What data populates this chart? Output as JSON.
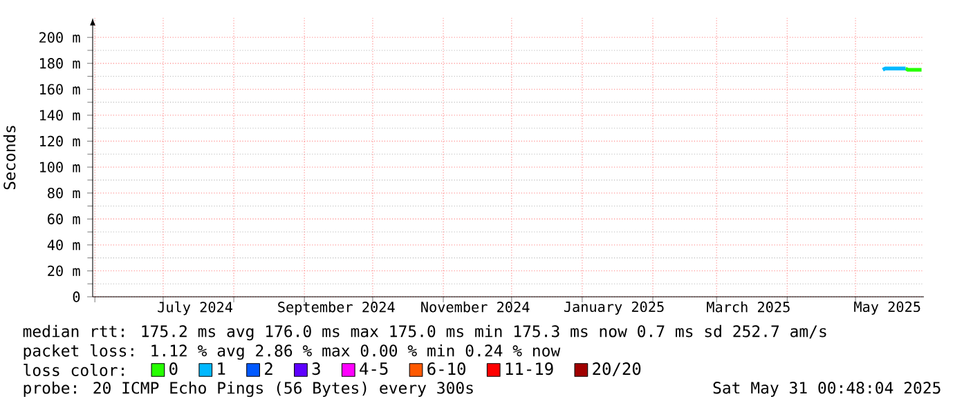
{
  "chart_data": {
    "type": "line",
    "ylabel": "Seconds",
    "legend_title": "loss color:",
    "xlim": [
      "2024-05-31T00:48",
      "2025-05-31T00:48"
    ],
    "xticks": [
      {
        "value": "2024-06-01",
        "label": null
      },
      {
        "value": "2024-07-01",
        "label": null
      },
      {
        "value": "2024-08-01",
        "label": null
      },
      {
        "value": "2024-09-01",
        "label": null
      },
      {
        "value": "2024-10-01",
        "label": null
      },
      {
        "value": "2024-11-01",
        "label": null
      },
      {
        "value": "2024-12-01",
        "label": null
      },
      {
        "value": "2025-01-01",
        "label": null
      },
      {
        "value": "2025-02-01",
        "label": null
      },
      {
        "value": "2025-03-01",
        "label": null
      },
      {
        "value": "2025-04-01",
        "label": null
      },
      {
        "value": "2025-05-01",
        "label": null
      },
      {
        "value": "2024-07-15",
        "label": "July 2024"
      },
      {
        "value": "2024-09-15",
        "label": "September 2024"
      },
      {
        "value": "2024-11-15",
        "label": "November 2024"
      },
      {
        "value": "2025-01-15",
        "label": "January 2025"
      },
      {
        "value": "2025-03-15",
        "label": "March 2025"
      },
      {
        "value": "2025-05-15",
        "label": "May 2025"
      }
    ],
    "ylim": [
      0,
      215
    ],
    "yticks": [
      0,
      {
        "value": 20,
        "label": "20 m"
      },
      {
        "value": 40,
        "label": "40 m"
      },
      {
        "value": 60,
        "label": "60 m"
      },
      {
        "value": 80,
        "label": "80 m"
      },
      {
        "value": 100,
        "label": "100 m"
      },
      {
        "value": 120,
        "label": "120 m"
      },
      {
        "value": 140,
        "label": "140 m"
      },
      {
        "value": 160,
        "label": "160 m"
      },
      {
        "value": 180,
        "label": "180 m"
      },
      {
        "value": 200,
        "label": "200 m"
      }
    ],
    "grid": true,
    "legend": "bottom left",
    "marker": "none",
    "line_style": "solid",
    "series": [
      {
        "name": "0",
        "color": "#26ff00",
        "x": [
          "2025-05-23",
          "2025-05-24",
          "2025-05-25",
          "2025-05-26",
          "2025-05-27",
          "2025-05-28",
          "2025-05-29",
          "2025-05-30"
        ],
        "values": [
          176,
          175,
          175,
          175,
          175,
          175,
          175,
          175
        ]
      },
      {
        "name": "1",
        "color": "#00b8ff",
        "x": [
          "2025-05-13",
          "2025-05-14",
          "2025-05-15",
          "2025-05-16",
          "2025-05-17",
          "2025-05-18",
          "2025-05-19",
          "2025-05-20",
          "2025-05-21",
          "2025-05-22",
          "2025-05-23"
        ],
        "values": [
          175,
          176,
          176,
          176,
          176,
          176,
          176,
          176,
          176,
          176,
          176
        ]
      },
      {
        "name": "2",
        "color": "#0059ff"
      },
      {
        "name": "3",
        "color": "#5e00ff"
      },
      {
        "name": "4-5",
        "color": "#ff00fe"
      },
      {
        "name": "6-10",
        "color": "#ff5900"
      },
      {
        "name": "11-19",
        "color": "#ff0000"
      },
      {
        "name": "20/20",
        "color": "#a10000"
      }
    ],
    "annotations": [
      "median rtt:  175.2 ms avg  176.0 ms max  175.0 ms min  175.3 ms now  0.7 ms sd  252.7   am/s",
      "packet loss: 1.12 % avg  2.86 % max  0.00 % min  0.24 % now",
      "probe:       20 ICMP Echo Pings (56 Bytes) every 300s",
      "Sat May 31 00:48:04 2025"
    ]
  }
}
